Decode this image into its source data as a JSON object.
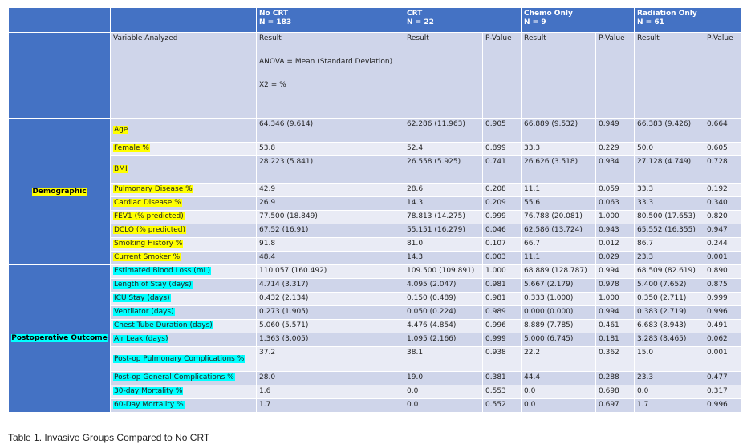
{
  "header": {
    "groups": [
      {
        "name": "No CRT",
        "n": "N = 183"
      },
      {
        "name": "CRT",
        "n": "N = 22"
      },
      {
        "name": "Chemo Only",
        "n": "N = 9"
      },
      {
        "name": "Radiation  Only",
        "n": "N = 61"
      }
    ]
  },
  "subheader": {
    "variable": "Variable Analyzed",
    "result": "Result",
    "pvalue": "P-Value",
    "anova_note": "ANOVA = Mean (Standard Deviation)",
    "x2_note": "X2 = %"
  },
  "sections": [
    {
      "label": "Demographic",
      "highlight": "#ffff00"
    },
    {
      "label": "Postoperative Outcome",
      "highlight": "#00ffff"
    }
  ],
  "rows": [
    {
      "var": "Age",
      "v": [
        "64.346 (9.614)",
        "62.286 (11.963)",
        "0.905",
        "66.889 (9.532)",
        "0.949",
        "66.383 (9.426)",
        "0.664"
      ]
    },
    {
      "var": "Female %",
      "v": [
        "53.8",
        "52.4",
        "0.899",
        "33.3",
        "0.229",
        "50.0",
        "0.605"
      ]
    },
    {
      "var": "BMI",
      "v": [
        "28.223 (5.841)",
        "26.558 (5.925)",
        "0.741",
        "26.626 (3.518)",
        "0.934",
        "27.128 (4.749)",
        "0.728"
      ]
    },
    {
      "var": "Pulmonary Disease %",
      "v": [
        "42.9",
        "28.6",
        "0.208",
        "11.1",
        "0.059",
        "33.3",
        "0.192"
      ]
    },
    {
      "var": "Cardiac Disease %",
      "v": [
        "26.9",
        "14.3",
        "0.209",
        "55.6",
        "0.063",
        "33.3",
        "0.340"
      ]
    },
    {
      "var": "FEV1 (% predicted)",
      "v": [
        "77.500 (18.849)",
        "78.813 (14.275)",
        "0.999",
        "76.788 (20.081)",
        "1.000",
        "80.500 (17.653)",
        "0.820"
      ]
    },
    {
      "var": "DCLO (% predicted)",
      "v": [
        "67.52 (16.91)",
        "55.151 (16.279)",
        "0.046",
        "62.586 (13.724)",
        "0.943",
        "65.552 (16.355)",
        "0.947"
      ]
    },
    {
      "var": "Smoking History %",
      "v": [
        "91.8",
        "81.0",
        "0.107",
        "66.7",
        "0.012",
        "86.7",
        "0.244"
      ]
    },
    {
      "var": "Current Smoker %",
      "v": [
        "48.4",
        "14.3",
        "0.003",
        "11.1",
        "0.029",
        "23.3",
        "0.001"
      ]
    },
    {
      "var": "Estimated Blood Loss (mL)",
      "v": [
        "110.057 (160.492)",
        "109.500 (109.891)",
        "1.000",
        "68.889 (128.787)",
        "0.994",
        "68.509 (82.619)",
        "0.890"
      ]
    },
    {
      "var": "Length  of Stay (days)",
      "v": [
        "4.714 (3.317)",
        "4.095 (2.047)",
        "0.981",
        "5.667 (2.179)",
        "0.978",
        "5.400 (7.652)",
        "0.875"
      ]
    },
    {
      "var": "ICU Stay (days)",
      "v": [
        "0.432 (2.134)",
        "0.150 (0.489)",
        "0.981",
        "0.333 (1.000)",
        "1.000",
        "0.350 (2.711)",
        "0.999"
      ]
    },
    {
      "var": "Ventilator (days)",
      "v": [
        "0.273 (1.905)",
        "0.050 (0.224)",
        "0.989",
        "0.000 (0.000)",
        "0.994",
        "0.383 (2.719)",
        "0.996"
      ]
    },
    {
      "var": "Chest Tube  Duration (days)",
      "v": [
        "5.060 (5.571)",
        "4.476 (4.854)",
        "0.996",
        "8.889 (7.785)",
        "0.461",
        "6.683 (8.943)",
        "0.491"
      ]
    },
    {
      "var": "Air Leak (days)",
      "v": [
        "1.363 (3.005)",
        "1.095 (2.166)",
        "0.999",
        "5.000 (6.745)",
        "0.181",
        "3.283 (8.465)",
        "0.062"
      ]
    },
    {
      "var": "Post-op Pulmonary Complications %",
      "v": [
        "37.2",
        "38.1",
        "0.938",
        "22.2",
        "0.362",
        "15.0",
        "0.001"
      ]
    },
    {
      "var": "Post-op General Complications %",
      "v": [
        "28.0",
        "19.0",
        "0.381",
        "44.4",
        "0.288",
        "23.3",
        "0.477"
      ]
    },
    {
      "var": "30-day Mortality %",
      "v": [
        "1.6",
        "0.0",
        "0.553",
        "0.0",
        "0.698",
        "0.0",
        "0.317"
      ]
    },
    {
      "var": "60-Day Mortality %",
      "v": [
        "1.7",
        "0.0",
        "0.552",
        "0.0",
        "0.697",
        "1.7",
        "0.996"
      ]
    }
  ],
  "caption": "Table 1. Invasive Groups Compared to No CRT"
}
